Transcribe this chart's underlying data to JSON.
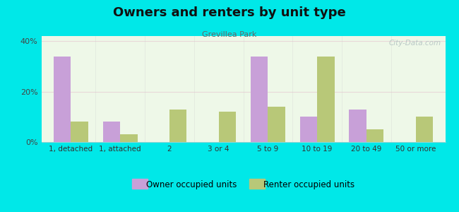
{
  "title": "Owners and renters by unit type",
  "subtitle": "Grevillea Park",
  "categories": [
    "1, detached",
    "1, attached",
    "2",
    "3 or 4",
    "5 to 9",
    "10 to 19",
    "20 to 49",
    "50 or more"
  ],
  "owner_values": [
    34,
    8,
    0,
    0,
    34,
    10,
    13,
    0
  ],
  "renter_values": [
    8,
    3,
    13,
    12,
    14,
    34,
    5,
    10
  ],
  "owner_color": "#c8a0d8",
  "renter_color": "#b8c878",
  "background_color": "#00e8e8",
  "plot_bg": "#e8f5e0",
  "ylim": [
    0,
    42
  ],
  "yticks": [
    0,
    20,
    40
  ],
  "ytick_labels": [
    "0%",
    "20%",
    "40%"
  ],
  "bar_width": 0.35,
  "legend_owner": "Owner occupied units",
  "legend_renter": "Renter occupied units",
  "watermark": "City-Data.com",
  "title_fontsize": 13,
  "subtitle_fontsize": 8
}
